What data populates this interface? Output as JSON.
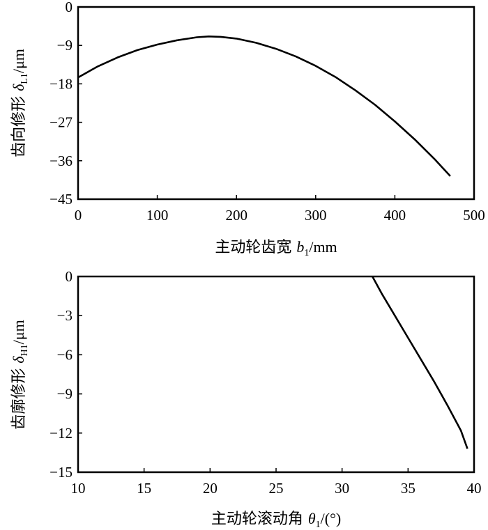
{
  "chart_data": [
    {
      "type": "line",
      "xlabel_main": "主动轮齿宽 ",
      "xlabel_var": "b",
      "xlabel_sub": "1",
      "xlabel_unit": "/mm",
      "ylabel_main": "齿向修形 ",
      "ylabel_var": "δ",
      "ylabel_sub": "L1",
      "ylabel_unit": "/μm",
      "xlim": [
        0,
        500
      ],
      "ylim": [
        -45,
        0
      ],
      "xticks": [
        "0",
        "100",
        "200",
        "300",
        "400",
        "500"
      ],
      "yticks": [
        "0",
        "-9",
        "-18",
        "-27",
        "-36",
        "-45"
      ],
      "grid": false,
      "series": [
        {
          "x": [
            0,
            25,
            50,
            75,
            100,
            125,
            150,
            165,
            180,
            200,
            225,
            250,
            275,
            300,
            325,
            350,
            375,
            400,
            425,
            450,
            470
          ],
          "values": [
            -16.5,
            -13.9,
            -11.8,
            -10.1,
            -8.8,
            -7.8,
            -7.1,
            -6.9,
            -7.0,
            -7.4,
            -8.4,
            -9.8,
            -11.6,
            -13.8,
            -16.4,
            -19.5,
            -22.9,
            -26.8,
            -31.0,
            -35.6,
            -39.6
          ]
        }
      ]
    },
    {
      "type": "line",
      "xlabel_main": "主动轮滚动角 ",
      "xlabel_var": "θ",
      "xlabel_sub": "1",
      "xlabel_unit": "/(°)",
      "ylabel_main": "齿廓修形 ",
      "ylabel_var": "δ",
      "ylabel_sub": "H1",
      "ylabel_unit": "/μm",
      "xlim": [
        10,
        40
      ],
      "ylim": [
        -15,
        0
      ],
      "xticks": [
        "10",
        "15",
        "20",
        "25",
        "30",
        "35",
        "40"
      ],
      "yticks": [
        "0",
        "-3",
        "-6",
        "-9",
        "-12",
        "-15"
      ],
      "grid": false,
      "series": [
        {
          "x": [
            32.3,
            33.0,
            34.0,
            35.0,
            36.0,
            37.0,
            38.0,
            39.0,
            39.5
          ],
          "values": [
            0,
            -1.3,
            -3.0,
            -4.7,
            -6.4,
            -8.1,
            -9.9,
            -11.8,
            -13.2
          ]
        }
      ]
    }
  ]
}
